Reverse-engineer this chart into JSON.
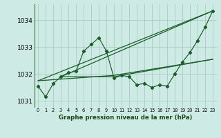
{
  "title": "Graphe pression niveau de la mer (hPa)",
  "background_color": "#ceeae4",
  "grid_color": "#a8ccbf",
  "line_color": "#1a5c2a",
  "ylim": [
    1030.75,
    1034.6
  ],
  "yticks": [
    1031,
    1032,
    1033,
    1034
  ],
  "xlim": [
    -0.5,
    23.5
  ],
  "xticks": [
    0,
    1,
    2,
    3,
    4,
    5,
    6,
    7,
    8,
    9,
    10,
    11,
    12,
    13,
    14,
    15,
    16,
    17,
    18,
    19,
    20,
    21,
    22,
    23
  ],
  "x_labels": [
    "0",
    "1",
    "2",
    "3",
    "4",
    "5",
    "6",
    "7",
    "8",
    "9",
    "10",
    "11",
    "12",
    "13",
    "14",
    "15",
    "16",
    "17",
    "18",
    "19",
    "20",
    "21",
    "22",
    "23"
  ],
  "main_line": [
    1031.55,
    1031.15,
    1031.65,
    1031.9,
    1032.05,
    1032.1,
    1032.85,
    1033.1,
    1033.35,
    1032.85,
    1031.85,
    1031.95,
    1031.9,
    1031.6,
    1031.65,
    1031.5,
    1031.6,
    1031.55,
    1032.0,
    1032.45,
    1032.8,
    1033.25,
    1033.75,
    1034.35
  ],
  "trend_lines": [
    {
      "x": [
        0,
        23
      ],
      "y": [
        1031.75,
        1034.35
      ]
    },
    {
      "x": [
        3,
        23
      ],
      "y": [
        1031.9,
        1034.35
      ]
    },
    {
      "x": [
        3,
        10,
        23
      ],
      "y": [
        1031.9,
        1031.9,
        1032.55
      ]
    },
    {
      "x": [
        0,
        10,
        23
      ],
      "y": [
        1031.75,
        1031.95,
        1032.55
      ]
    }
  ]
}
